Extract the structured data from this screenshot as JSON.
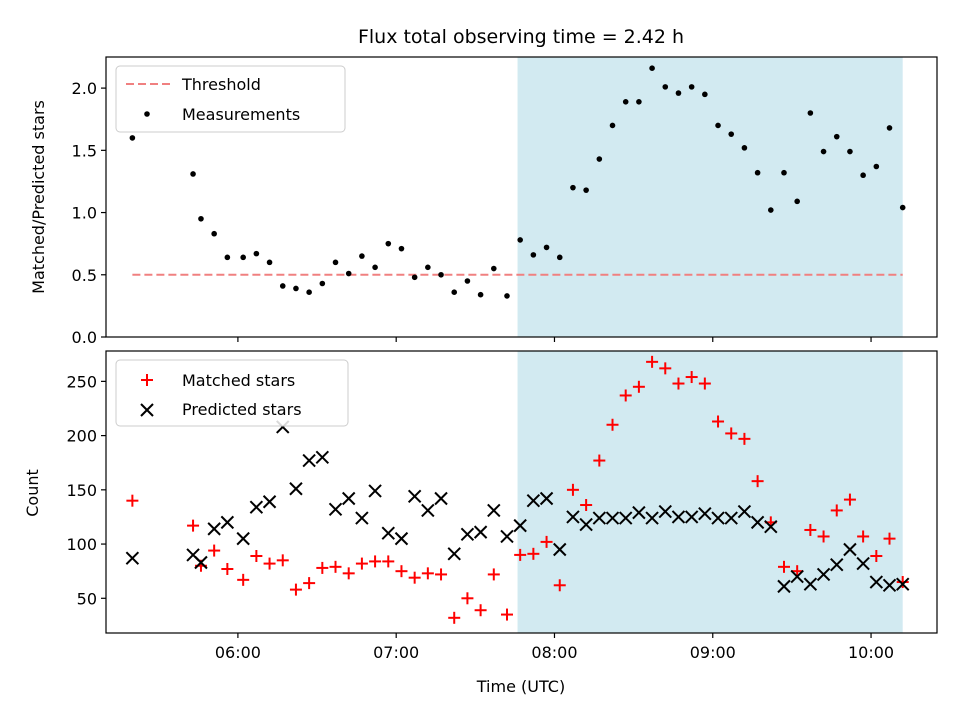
{
  "colors": {
    "threshold": "#f08080",
    "shade": "#add8e6",
    "matched": "#ff0000",
    "predicted": "#000000",
    "measurement": "#000000"
  },
  "chart_data": [
    {
      "type": "scatter",
      "title": "Flux total observing time = 2.42 h",
      "xlabel": "",
      "ylabel": "Matched/Predicted stars",
      "xlim": [
        "05:10",
        "10:25"
      ],
      "ylim": [
        0,
        2.25
      ],
      "yticks": [
        "0.0",
        "0.5",
        "1.0",
        "1.5",
        "2.0"
      ],
      "legend_position": "upper-left",
      "shaded_region": {
        "x_start": "07:46",
        "x_end": "10:12"
      },
      "threshold": {
        "name": "Threshold",
        "value": 0.5,
        "x_start": "05:20",
        "x_end": "10:12"
      },
      "series": [
        {
          "name": "Measurements",
          "points": [
            [
              "05:20",
              1.6
            ],
            [
              "05:43",
              1.31
            ],
            [
              "05:46",
              0.95
            ],
            [
              "05:51",
              0.83
            ],
            [
              "05:56",
              0.64
            ],
            [
              "06:02",
              0.64
            ],
            [
              "06:07",
              0.67
            ],
            [
              "06:12",
              0.6
            ],
            [
              "06:17",
              0.41
            ],
            [
              "06:22",
              0.39
            ],
            [
              "06:27",
              0.36
            ],
            [
              "06:32",
              0.43
            ],
            [
              "06:37",
              0.6
            ],
            [
              "06:42",
              0.51
            ],
            [
              "06:47",
              0.65
            ],
            [
              "06:52",
              0.56
            ],
            [
              "06:57",
              0.75
            ],
            [
              "07:02",
              0.71
            ],
            [
              "07:07",
              0.48
            ],
            [
              "07:12",
              0.56
            ],
            [
              "07:17",
              0.5
            ],
            [
              "07:22",
              0.36
            ],
            [
              "07:27",
              0.45
            ],
            [
              "07:32",
              0.34
            ],
            [
              "07:37",
              0.55
            ],
            [
              "07:42",
              0.33
            ],
            [
              "07:47",
              0.78
            ],
            [
              "07:52",
              0.66
            ],
            [
              "07:57",
              0.72
            ],
            [
              "08:02",
              0.64
            ],
            [
              "08:07",
              1.2
            ],
            [
              "08:12",
              1.18
            ],
            [
              "08:17",
              1.43
            ],
            [
              "08:22",
              1.7
            ],
            [
              "08:27",
              1.89
            ],
            [
              "08:32",
              1.89
            ],
            [
              "08:37",
              2.16
            ],
            [
              "08:42",
              2.01
            ],
            [
              "08:47",
              1.96
            ],
            [
              "08:52",
              2.01
            ],
            [
              "08:57",
              1.95
            ],
            [
              "09:02",
              1.7
            ],
            [
              "09:07",
              1.63
            ],
            [
              "09:12",
              1.52
            ],
            [
              "09:17",
              1.32
            ],
            [
              "09:22",
              1.02
            ],
            [
              "09:27",
              1.32
            ],
            [
              "09:32",
              1.09
            ],
            [
              "09:37",
              1.8
            ],
            [
              "09:42",
              1.49
            ],
            [
              "09:47",
              1.61
            ],
            [
              "09:52",
              1.49
            ],
            [
              "09:57",
              1.3
            ],
            [
              "10:02",
              1.37
            ],
            [
              "10:07",
              1.68
            ],
            [
              "10:12",
              1.04
            ]
          ]
        }
      ]
    },
    {
      "type": "scatter",
      "title": "",
      "xlabel": "Time (UTC)",
      "ylabel": "Count",
      "xlim": [
        "05:10",
        "10:25"
      ],
      "ylim": [
        18,
        278
      ],
      "yticks": [
        "50",
        "100",
        "150",
        "200",
        "250"
      ],
      "xticks": [
        "06:00",
        "07:00",
        "08:00",
        "09:00",
        "10:00"
      ],
      "legend_position": "upper-left",
      "shaded_region": {
        "x_start": "07:46",
        "x_end": "10:12"
      },
      "series": [
        {
          "name": "Matched stars",
          "marker": "plus",
          "points": [
            [
              "05:20",
              140
            ],
            [
              "05:43",
              117
            ],
            [
              "05:46",
              80
            ],
            [
              "05:51",
              94
            ],
            [
              "05:56",
              77
            ],
            [
              "06:02",
              67
            ],
            [
              "06:07",
              89
            ],
            [
              "06:12",
              82
            ],
            [
              "06:17",
              85
            ],
            [
              "06:22",
              58
            ],
            [
              "06:27",
              64
            ],
            [
              "06:32",
              78
            ],
            [
              "06:37",
              79
            ],
            [
              "06:42",
              73
            ],
            [
              "06:47",
              82
            ],
            [
              "06:52",
              84
            ],
            [
              "06:57",
              84
            ],
            [
              "07:02",
              75
            ],
            [
              "07:07",
              69
            ],
            [
              "07:12",
              73
            ],
            [
              "07:17",
              72
            ],
            [
              "07:22",
              32
            ],
            [
              "07:27",
              50
            ],
            [
              "07:32",
              39
            ],
            [
              "07:37",
              72
            ],
            [
              "07:42",
              35
            ],
            [
              "07:47",
              90
            ],
            [
              "07:52",
              91
            ],
            [
              "07:57",
              102
            ],
            [
              "08:02",
              62
            ],
            [
              "08:07",
              150
            ],
            [
              "08:12",
              136
            ],
            [
              "08:17",
              177
            ],
            [
              "08:22",
              210
            ],
            [
              "08:27",
              237
            ],
            [
              "08:32",
              245
            ],
            [
              "08:37",
              268
            ],
            [
              "08:42",
              262
            ],
            [
              "08:47",
              248
            ],
            [
              "08:52",
              254
            ],
            [
              "08:57",
              248
            ],
            [
              "09:02",
              213
            ],
            [
              "09:07",
              202
            ],
            [
              "09:12",
              197
            ],
            [
              "09:17",
              158
            ],
            [
              "09:22",
              120
            ],
            [
              "09:27",
              79
            ],
            [
              "09:32",
              75
            ],
            [
              "09:37",
              113
            ],
            [
              "09:42",
              107
            ],
            [
              "09:47",
              131
            ],
            [
              "09:52",
              141
            ],
            [
              "09:57",
              107
            ],
            [
              "10:02",
              89
            ],
            [
              "10:07",
              105
            ],
            [
              "10:12",
              65
            ]
          ]
        },
        {
          "name": "Predicted stars",
          "marker": "x",
          "points": [
            [
              "05:20",
              87
            ],
            [
              "05:43",
              90
            ],
            [
              "05:46",
              83
            ],
            [
              "05:51",
              114
            ],
            [
              "05:56",
              120
            ],
            [
              "06:02",
              105
            ],
            [
              "06:07",
              134
            ],
            [
              "06:12",
              139
            ],
            [
              "06:17",
              208
            ],
            [
              "06:22",
              151
            ],
            [
              "06:27",
              177
            ],
            [
              "06:32",
              180
            ],
            [
              "06:37",
              132
            ],
            [
              "06:42",
              142
            ],
            [
              "06:47",
              124
            ],
            [
              "06:52",
              149
            ],
            [
              "06:57",
              110
            ],
            [
              "07:02",
              105
            ],
            [
              "07:07",
              144
            ],
            [
              "07:12",
              131
            ],
            [
              "07:17",
              142
            ],
            [
              "07:22",
              91
            ],
            [
              "07:27",
              109
            ],
            [
              "07:32",
              111
            ],
            [
              "07:37",
              131
            ],
            [
              "07:42",
              107
            ],
            [
              "07:47",
              117
            ],
            [
              "07:52",
              140
            ],
            [
              "07:57",
              142
            ],
            [
              "08:02",
              95
            ],
            [
              "08:07",
              125
            ],
            [
              "08:12",
              118
            ],
            [
              "08:17",
              124
            ],
            [
              "08:22",
              124
            ],
            [
              "08:27",
              124
            ],
            [
              "08:32",
              129
            ],
            [
              "08:37",
              124
            ],
            [
              "08:42",
              130
            ],
            [
              "08:47",
              125
            ],
            [
              "08:52",
              125
            ],
            [
              "08:57",
              128
            ],
            [
              "09:02",
              124
            ],
            [
              "09:07",
              124
            ],
            [
              "09:12",
              130
            ],
            [
              "09:17",
              120
            ],
            [
              "09:22",
              116
            ],
            [
              "09:27",
              61
            ],
            [
              "09:32",
              70
            ],
            [
              "09:37",
              63
            ],
            [
              "09:42",
              72
            ],
            [
              "09:47",
              81
            ],
            [
              "09:52",
              95
            ],
            [
              "09:57",
              82
            ],
            [
              "10:02",
              65
            ],
            [
              "10:07",
              62
            ],
            [
              "10:12",
              63
            ]
          ]
        }
      ]
    }
  ]
}
